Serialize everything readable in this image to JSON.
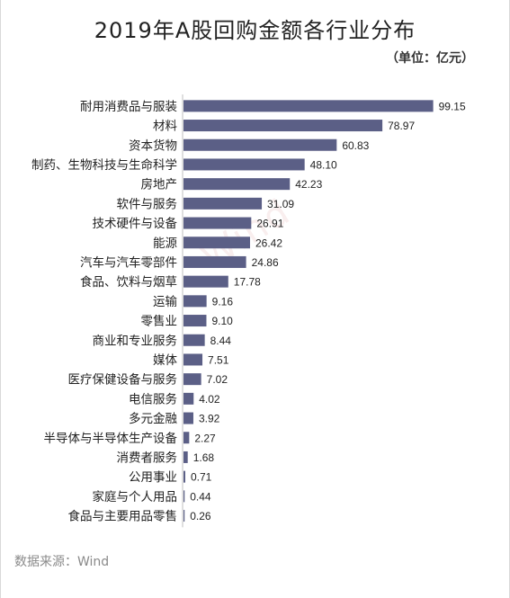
{
  "header": {
    "title": "2019年A股回购金额各行业分布",
    "unit": "（单位：亿元）"
  },
  "footer": {
    "source": "数据来源：Wind"
  },
  "watermark": {
    "text": "Wind"
  },
  "colors": {
    "bar": "#5b5f86",
    "axis": "#bfbfbf",
    "label": "#222222"
  },
  "chart_data": {
    "type": "bar",
    "orientation": "horizontal",
    "title": "2019年A股回购金额各行业分布",
    "unit": "（单位：亿元）",
    "xlabel": "",
    "ylabel": "",
    "xlim": [
      0,
      100
    ],
    "grid": false,
    "legend": "none",
    "categories": [
      "耐用消费品与服装",
      "材料",
      "资本货物",
      "制药、生物科技与生命科学",
      "房地产",
      "软件与服务",
      "技术硬件与设备",
      "能源",
      "汽车与汽车零部件",
      "食品、饮料与烟草",
      "运输",
      "零售业",
      "商业和专业服务",
      "媒体",
      "医疗保健设备与服务",
      "电信服务",
      "多元金融",
      "半导体与半导体生产设备",
      "消费者服务",
      "公用事业",
      "家庭与个人用品",
      "食品与主要用品零售"
    ],
    "values": [
      99.15,
      78.97,
      60.83,
      48.1,
      42.23,
      31.09,
      26.91,
      26.42,
      24.86,
      17.78,
      9.16,
      9.1,
      8.44,
      7.51,
      7.02,
      4.02,
      3.92,
      2.27,
      1.68,
      0.71,
      0.44,
      0.26
    ],
    "value_labels": [
      "99.15",
      "78.97",
      "60.83",
      "48.10",
      "42.23",
      "31.09",
      "26.91",
      "26.42",
      "24.86",
      "17.78",
      "9.16",
      "9.10",
      "8.44",
      "7.51",
      "7.02",
      "4.02",
      "3.92",
      "2.27",
      "1.68",
      "0.71",
      "0.44",
      "0.26"
    ]
  }
}
